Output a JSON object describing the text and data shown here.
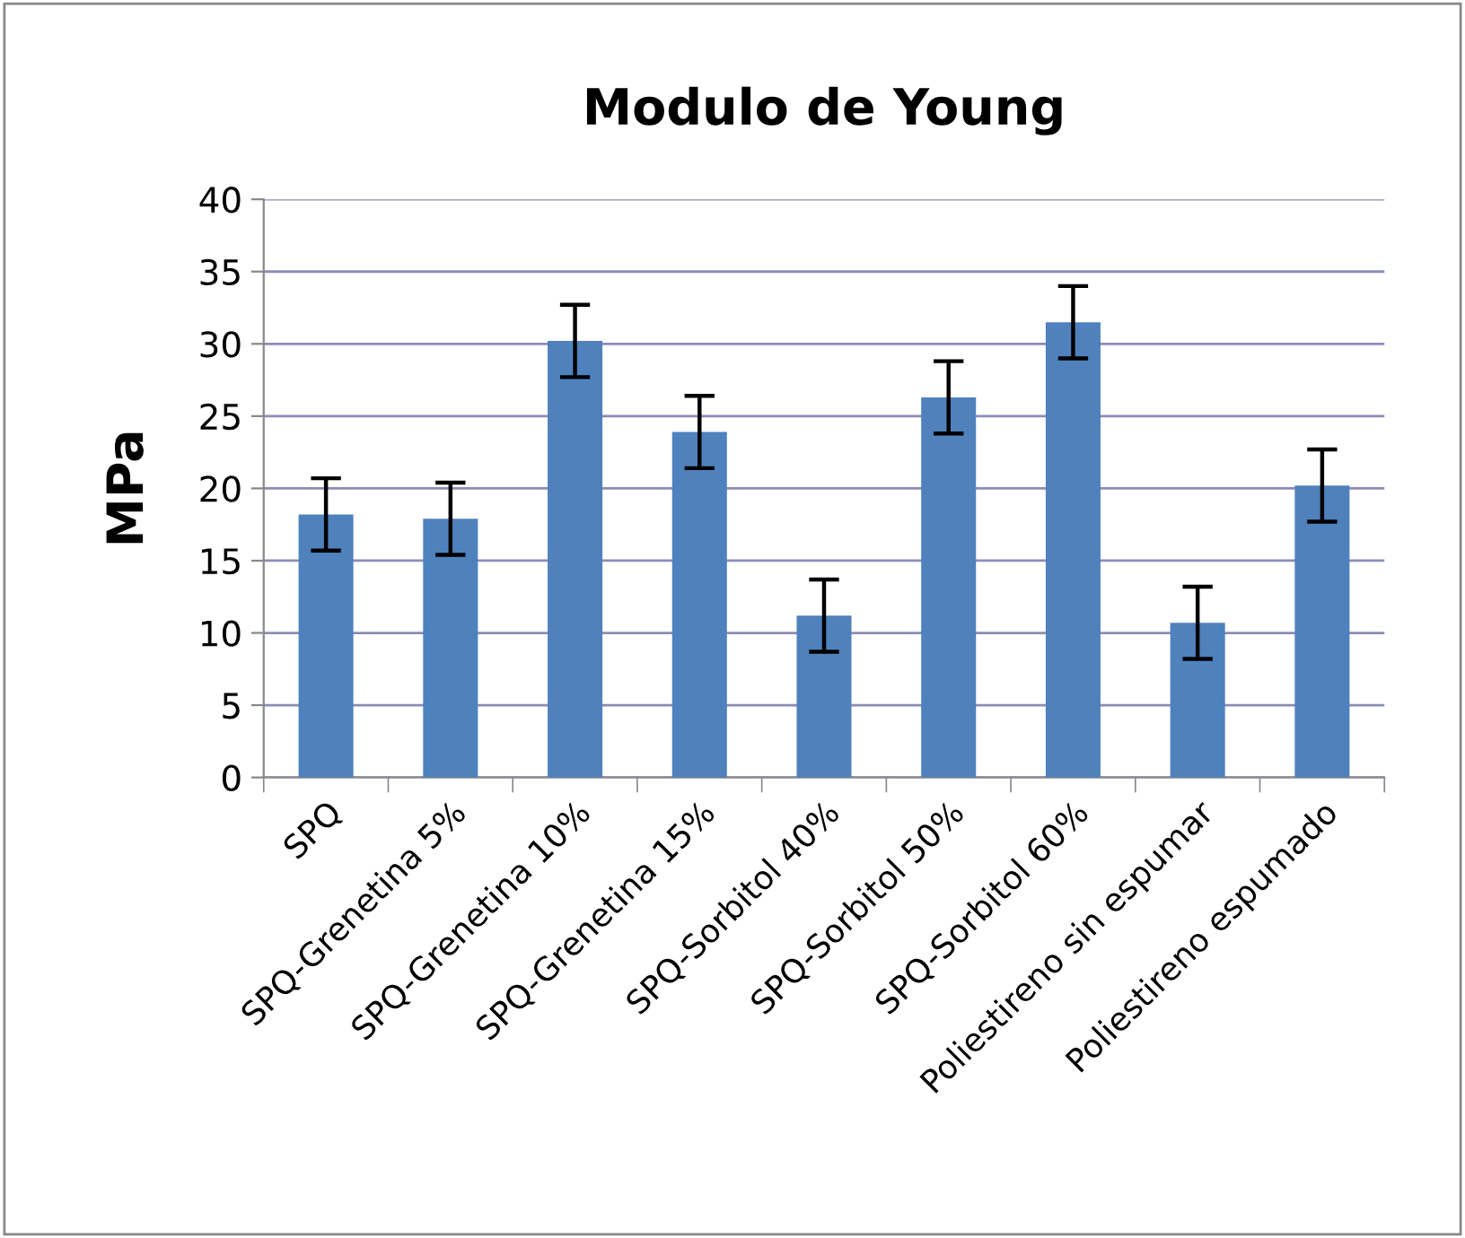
{
  "chart_data": {
    "type": "bar",
    "title": "Modulo de Young",
    "ylabel": "MPa",
    "categories": [
      "SPQ",
      "SPQ-Grenetina 5%",
      "SPQ-Grenetina 10%",
      "SPQ-Grenetina 15%",
      "SPQ-Sorbitol 40%",
      "SPQ-Sorbitol 50%",
      "SPQ-Sorbitol 60%",
      "Poliestireno sin espumar",
      "Poliestireno espumado"
    ],
    "values": [
      18.2,
      17.9,
      30.2,
      23.9,
      11.2,
      26.3,
      31.5,
      10.7,
      20.2
    ],
    "errors": [
      2.5,
      2.5,
      2.5,
      2.5,
      2.5,
      2.5,
      2.5,
      2.5,
      2.5
    ],
    "color": "#4f81bd",
    "ylim": [
      0,
      40
    ],
    "yticks": [
      0,
      5,
      10,
      15,
      20,
      25,
      30,
      35,
      40
    ],
    "grid": "y",
    "legend": false
  }
}
